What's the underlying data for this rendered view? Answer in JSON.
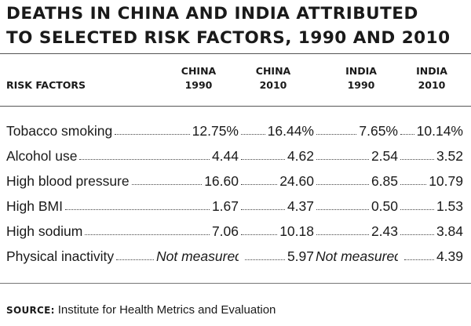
{
  "chart_data": {
    "type": "table",
    "title_lines": [
      "DEATHS IN CHINA AND INDIA ATTRIBUTED",
      "TO SELECTED RISK FACTORS, 1990 AND 2010"
    ],
    "row_header": "RISK FACTORS",
    "columns": [
      {
        "line1": "CHINA",
        "line2": "1990"
      },
      {
        "line1": "CHINA",
        "line2": "2010"
      },
      {
        "line1": "INDIA",
        "line2": "1990"
      },
      {
        "line1": "INDIA",
        "line2": "2010"
      }
    ],
    "rows": [
      {
        "label": "Tobacco smoking",
        "values": [
          "12.75%",
          "16.44%",
          "7.65%",
          "10.14%"
        ]
      },
      {
        "label": "Alcohol use",
        "values": [
          "4.44",
          "4.62",
          "2.54",
          "3.52"
        ]
      },
      {
        "label": "High blood pressure",
        "values": [
          "16.60",
          "24.60",
          "6.85",
          "10.79"
        ]
      },
      {
        "label": "High BMI",
        "values": [
          "1.67",
          "4.37",
          "0.50",
          "1.53"
        ]
      },
      {
        "label": "High sodium",
        "values": [
          "7.06",
          "10.18",
          "2.43",
          "3.84"
        ]
      },
      {
        "label": "Physical inactivity",
        "values": [
          "Not measured",
          "5.97",
          "Not measured",
          "4.39"
        ]
      }
    ],
    "source_label": "SOURCE:",
    "source_text": "Institute for Health Metrics and Evaluation"
  }
}
